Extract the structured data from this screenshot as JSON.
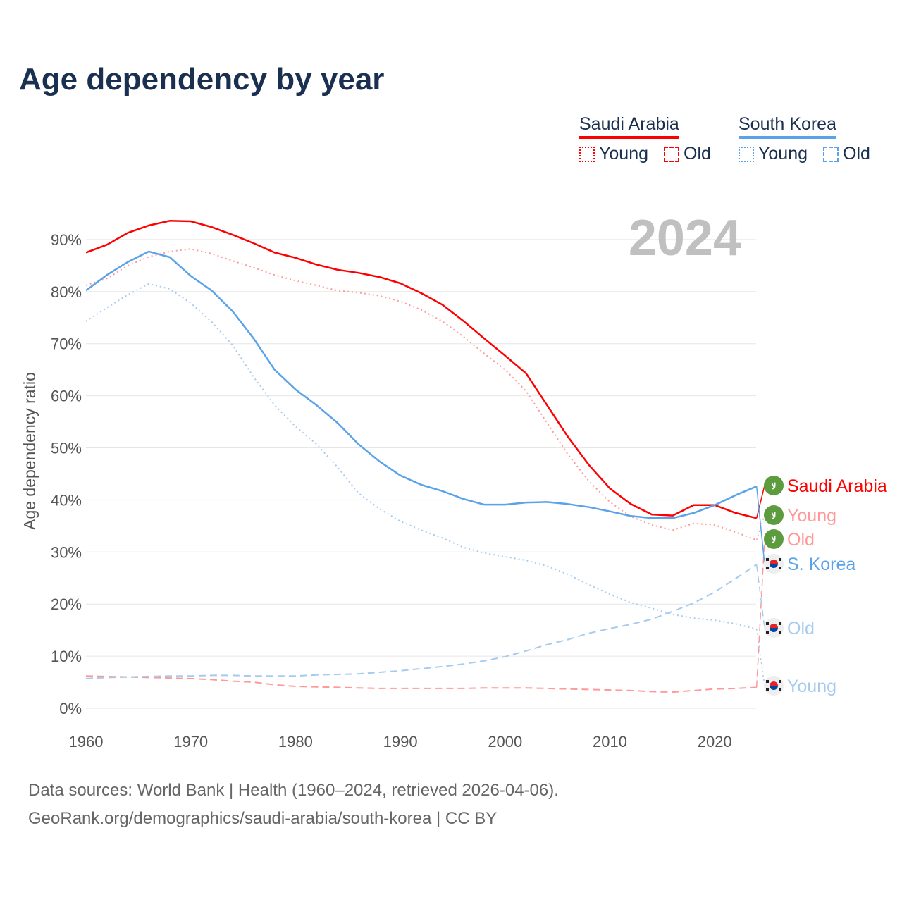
{
  "title": "Age dependency by year",
  "legend": {
    "countries": [
      {
        "name": "Saudi Arabia",
        "color": "#ff0000",
        "items": [
          "Young",
          "Old"
        ]
      },
      {
        "name": "South Korea",
        "color": "#5aa3ea",
        "items": [
          "Young",
          "Old"
        ]
      }
    ]
  },
  "year_watermark": "2024",
  "footer": {
    "line1": "Data sources: World Bank | Health (1960–2024, retrieved 2026-04-06).",
    "line2": "GeoRank.org/demographics/saudi-arabia/south-korea | CC BY"
  },
  "chart_data": {
    "type": "line",
    "title": "Age dependency by year",
    "ylabel": "Age dependency ratio",
    "xlabel": "",
    "xlim": [
      1960,
      2024
    ],
    "ylim": [
      0,
      90
    ],
    "xticks": [
      "1960",
      "1970",
      "1980",
      "1990",
      "2000",
      "2010",
      "2020"
    ],
    "yticks": [
      "0%",
      "10%",
      "20%",
      "30%",
      "40%",
      "50%",
      "60%",
      "70%",
      "80%",
      "90%"
    ],
    "grid": true,
    "x": [
      1960,
      1962,
      1964,
      1966,
      1968,
      1970,
      1972,
      1974,
      1976,
      1978,
      1980,
      1982,
      1984,
      1986,
      1988,
      1990,
      1992,
      1994,
      1996,
      1998,
      2000,
      2002,
      2004,
      2006,
      2008,
      2010,
      2012,
      2014,
      2016,
      2018,
      2020,
      2022,
      2024
    ],
    "series": [
      {
        "name": "Saudi Arabia",
        "end_label": "Saudi Arabia",
        "color": "#ff0000",
        "style": "solid",
        "flag": "sa",
        "values": [
          87.5,
          89,
          91.3,
          92.7,
          93.6,
          93.5,
          92.4,
          90.9,
          89.3,
          87.5,
          86.5,
          85.2,
          84.2,
          83.6,
          82.8,
          81.6,
          79.7,
          77.5,
          74.4,
          71,
          67.7,
          64.3,
          58.2,
          52.1,
          46.7,
          42.2,
          39.2,
          37.2,
          37.0,
          39,
          39,
          37.5,
          36.5
        ]
      },
      {
        "name": "Saudi Arabia Young",
        "end_label": "Young",
        "color": "#ff9999",
        "style": "dotted",
        "flag": "sa",
        "values": [
          81.2,
          82.5,
          85,
          86.7,
          87.7,
          88.2,
          87.3,
          85.9,
          84.6,
          83.2,
          82.1,
          81.2,
          80.2,
          79.8,
          79.2,
          78.1,
          76.5,
          74.3,
          71.4,
          68.1,
          65,
          60.9,
          54.8,
          48.7,
          43.6,
          39.6,
          36.8,
          35.2,
          34.2,
          35.5,
          35.2,
          33.8,
          32.3
        ]
      },
      {
        "name": "Saudi Arabia Old",
        "end_label": "Old",
        "color": "#ff9999",
        "style": "dashed",
        "flag": "sa",
        "values": [
          6.2,
          6.1,
          6.0,
          5.9,
          5.8,
          5.7,
          5.5,
          5.2,
          5.0,
          4.5,
          4.2,
          4.1,
          4.0,
          3.9,
          3.8,
          3.8,
          3.8,
          3.8,
          3.8,
          3.9,
          3.9,
          3.9,
          3.8,
          3.7,
          3.6,
          3.5,
          3.4,
          3.2,
          3.1,
          3.4,
          3.7,
          3.8,
          4.0
        ]
      },
      {
        "name": "South Korea",
        "end_label": "S. Korea",
        "color": "#5aa3ea",
        "style": "solid",
        "flag": "kr",
        "values": [
          80.2,
          83.2,
          85.7,
          87.7,
          86.6,
          83,
          80.2,
          76.2,
          71,
          65,
          61.2,
          58.2,
          54.8,
          50.7,
          47.4,
          44.7,
          42.9,
          41.7,
          40.2,
          39.1,
          39.1,
          39.5,
          39.6,
          39.2,
          38.6,
          37.8,
          36.9,
          36.5,
          36.5,
          37.5,
          39,
          40.9,
          42.6
        ]
      },
      {
        "name": "South Korea Old",
        "end_label": "Old",
        "color": "#a6cbf0",
        "style": "dashed",
        "flag": "kr",
        "values": [
          5.7,
          5.9,
          6.0,
          6.1,
          6.2,
          6.2,
          6.3,
          6.3,
          6.2,
          6.2,
          6.2,
          6.4,
          6.5,
          6.6,
          6.9,
          7.2,
          7.6,
          8.0,
          8.5,
          9.1,
          9.9,
          11.0,
          12.2,
          13.2,
          14.4,
          15.3,
          16.1,
          17.1,
          18.6,
          20.2,
          22.3,
          24.9,
          27.6
        ]
      },
      {
        "name": "South Korea Young",
        "end_label": "Young",
        "color": "#a6cbf0",
        "style": "dotted",
        "flag": "kr",
        "values": [
          74.3,
          76.9,
          79.4,
          81.5,
          80.5,
          77.8,
          74.2,
          69.7,
          63.6,
          58.2,
          54.1,
          50.7,
          46.3,
          41.3,
          38.3,
          35.9,
          34.2,
          32.7,
          30.9,
          29.8,
          29.1,
          28.4,
          27.3,
          25.7,
          23.7,
          21.9,
          20.3,
          19.2,
          18,
          17.3,
          16.9,
          16.2,
          15.2
        ]
      }
    ]
  }
}
